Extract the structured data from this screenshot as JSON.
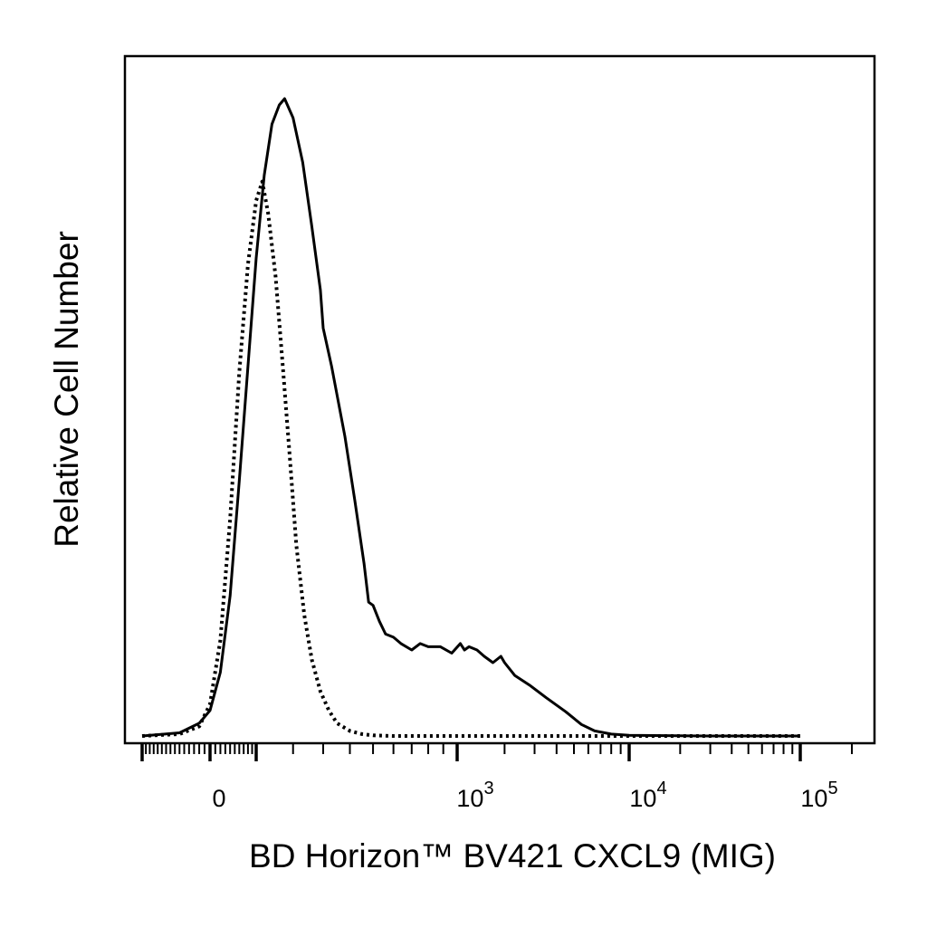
{
  "chart_data": {
    "type": "line",
    "title": "",
    "xlabel": "BD Horizon™ BV421 CXCL9 (MIG)",
    "ylabel": "Relative Cell Number",
    "x_scale": "biexponential",
    "grid": false,
    "legend": "none",
    "x_ticks": [
      {
        "value": 0,
        "base": "0",
        "exp": ""
      },
      {
        "value": 1000,
        "base": "10",
        "exp": "3"
      },
      {
        "value": 10000,
        "base": "10",
        "exp": "4"
      },
      {
        "value": 100000,
        "base": "10",
        "exp": "5"
      }
    ],
    "ylim": [
      0,
      100
    ],
    "series": [
      {
        "style": "solid",
        "color": "#000000",
        "points": [
          [
            -150,
            0
          ],
          [
            -60,
            0.5
          ],
          [
            -20,
            2
          ],
          [
            0,
            4
          ],
          [
            20,
            10
          ],
          [
            40,
            22
          ],
          [
            60,
            40
          ],
          [
            80,
            58
          ],
          [
            100,
            75
          ],
          [
            120,
            88
          ],
          [
            140,
            96
          ],
          [
            160,
            99
          ],
          [
            175,
            100
          ],
          [
            200,
            97
          ],
          [
            230,
            90
          ],
          [
            260,
            80
          ],
          [
            290,
            70
          ],
          [
            300,
            64
          ],
          [
            330,
            58
          ],
          [
            380,
            47
          ],
          [
            420,
            37
          ],
          [
            460,
            27
          ],
          [
            480,
            21
          ],
          [
            500,
            20.5
          ],
          [
            530,
            18
          ],
          [
            560,
            16
          ],
          [
            600,
            15.5
          ],
          [
            640,
            14.5
          ],
          [
            700,
            13.5
          ],
          [
            750,
            14.5
          ],
          [
            800,
            14
          ],
          [
            880,
            14
          ],
          [
            960,
            13
          ],
          [
            1050,
            14.5
          ],
          [
            1120,
            13.5
          ],
          [
            1200,
            14
          ],
          [
            1350,
            13.5
          ],
          [
            1500,
            12.5
          ],
          [
            1700,
            11.5
          ],
          [
            1900,
            12.5
          ],
          [
            2000,
            11.5
          ],
          [
            2300,
            9.5
          ],
          [
            2800,
            8
          ],
          [
            3500,
            6
          ],
          [
            4500,
            3.8
          ],
          [
            5500,
            1.8
          ],
          [
            6500,
            0.8
          ],
          [
            8000,
            0.3
          ],
          [
            10000,
            0.1
          ],
          [
            30000,
            0
          ],
          [
            100000,
            0
          ]
        ]
      },
      {
        "style": "dotted",
        "color": "#000000",
        "points": [
          [
            -150,
            0
          ],
          [
            -60,
            0.3
          ],
          [
            -20,
            1.5
          ],
          [
            0,
            5
          ],
          [
            20,
            15
          ],
          [
            40,
            34
          ],
          [
            60,
            57
          ],
          [
            80,
            74
          ],
          [
            100,
            84
          ],
          [
            115,
            87
          ],
          [
            130,
            82
          ],
          [
            150,
            72
          ],
          [
            170,
            58
          ],
          [
            190,
            44
          ],
          [
            210,
            30
          ],
          [
            235,
            19
          ],
          [
            260,
            12
          ],
          [
            290,
            7
          ],
          [
            320,
            4
          ],
          [
            350,
            2
          ],
          [
            400,
            0.8
          ],
          [
            450,
            0.3
          ],
          [
            500,
            0.1
          ],
          [
            600,
            0
          ],
          [
            100000,
            0
          ]
        ]
      }
    ]
  }
}
